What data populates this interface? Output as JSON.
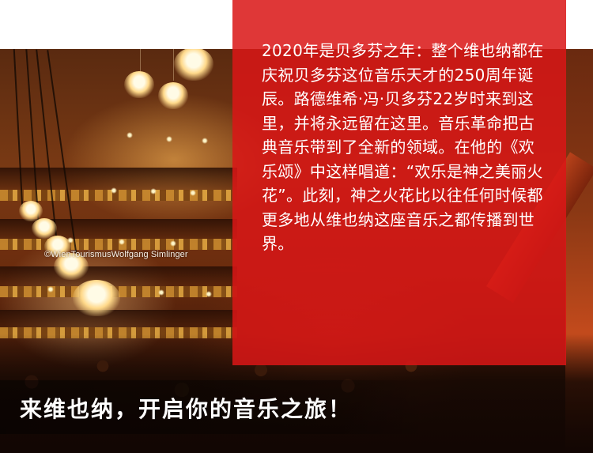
{
  "article": {
    "body": "2020年是贝多芬之年：整个维也纳都在庆祝贝多芬这位音乐天才的250周年诞辰。路德维希·冯·贝多芬22岁时来到这里，并将永远留在这里。音乐革命把古典音乐带到了全新的领域。在他的《欢乐颂》中这样唱道：“欢乐是神之美丽火花”。此刻，神之火花比以往任何时候都更多地从维也纳这座音乐之都传播到世界。",
    "headline": "来维也纳，开启你的音乐之旅！"
  },
  "photo": {
    "credit": "©WienTourismusWolfgang Simlinger"
  },
  "colors": {
    "panel": "#da1616",
    "text": "#ffffff"
  }
}
